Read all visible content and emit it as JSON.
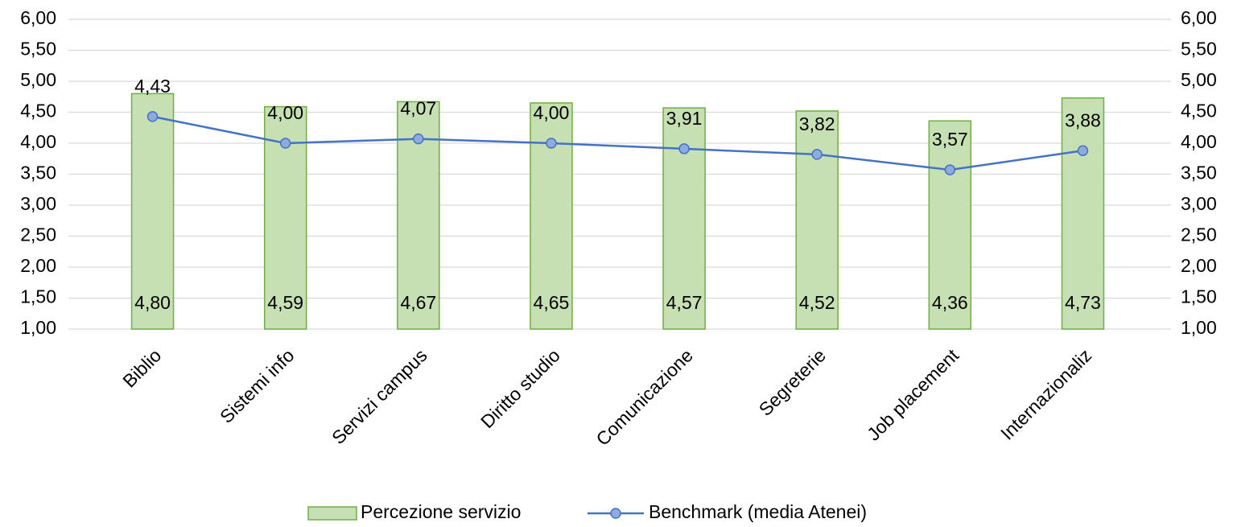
{
  "chart_data": {
    "type": "combo",
    "categories": [
      "Biblio",
      "Sistemi info",
      "Servizi campus",
      "Diritto studio",
      "Comunicazione",
      "Segreterie",
      "Job placement",
      "Internazionaliz"
    ],
    "series": [
      {
        "name": "Percezione servizio",
        "type": "bar",
        "color": "#c6e0b4",
        "edge_color": "#70ad47",
        "values": [
          4.8,
          4.59,
          4.67,
          4.65,
          4.57,
          4.52,
          4.36,
          4.73
        ],
        "value_labels": [
          "4,80",
          "4,59",
          "4,67",
          "4,65",
          "4,57",
          "4,52",
          "4,36",
          "4,73"
        ]
      },
      {
        "name": "Benchmark (media Atenei)",
        "type": "line",
        "axis": "y2",
        "color": "#4472c4",
        "marker_color": "#8faadc",
        "values": [
          4.43,
          4.0,
          4.07,
          4.0,
          3.91,
          3.82,
          3.57,
          3.88
        ],
        "value_labels": [
          "4,43",
          "4,00",
          "4,07",
          "4,00",
          "3,91",
          "3,82",
          "3,57",
          "3,88"
        ]
      }
    ],
    "ylim": [
      1,
      6
    ],
    "yticks": [
      {
        "value": 1,
        "label": "1,00"
      },
      {
        "value": 1.5,
        "label": "1,50"
      },
      {
        "value": 2,
        "label": "2,00"
      },
      {
        "value": 2.5,
        "label": "2,50"
      },
      {
        "value": 3,
        "label": "3,00"
      },
      {
        "value": 3.5,
        "label": "3,50"
      },
      {
        "value": 4,
        "label": "4,00"
      },
      {
        "value": 4.5,
        "label": "4,50"
      },
      {
        "value": 5,
        "label": "5,00"
      },
      {
        "value": 5.5,
        "label": "5,50"
      },
      {
        "value": 6,
        "label": "6,00"
      }
    ],
    "y2lim": [
      1,
      6
    ],
    "y2ticks": [
      {
        "value": 1,
        "label": "1,00"
      },
      {
        "value": 1.5,
        "label": "1,50"
      },
      {
        "value": 2,
        "label": "2,00"
      },
      {
        "value": 2.5,
        "label": "2,50"
      },
      {
        "value": 3,
        "label": "3,00"
      },
      {
        "value": 3.5,
        "label": "3,50"
      },
      {
        "value": 4,
        "label": "4,00"
      },
      {
        "value": 4.5,
        "label": "4,50"
      },
      {
        "value": 5,
        "label": "5,00"
      },
      {
        "value": 5.5,
        "label": "5,50"
      },
      {
        "value": 6,
        "label": "6,00"
      }
    ],
    "grid": true,
    "legend": "bottom"
  }
}
